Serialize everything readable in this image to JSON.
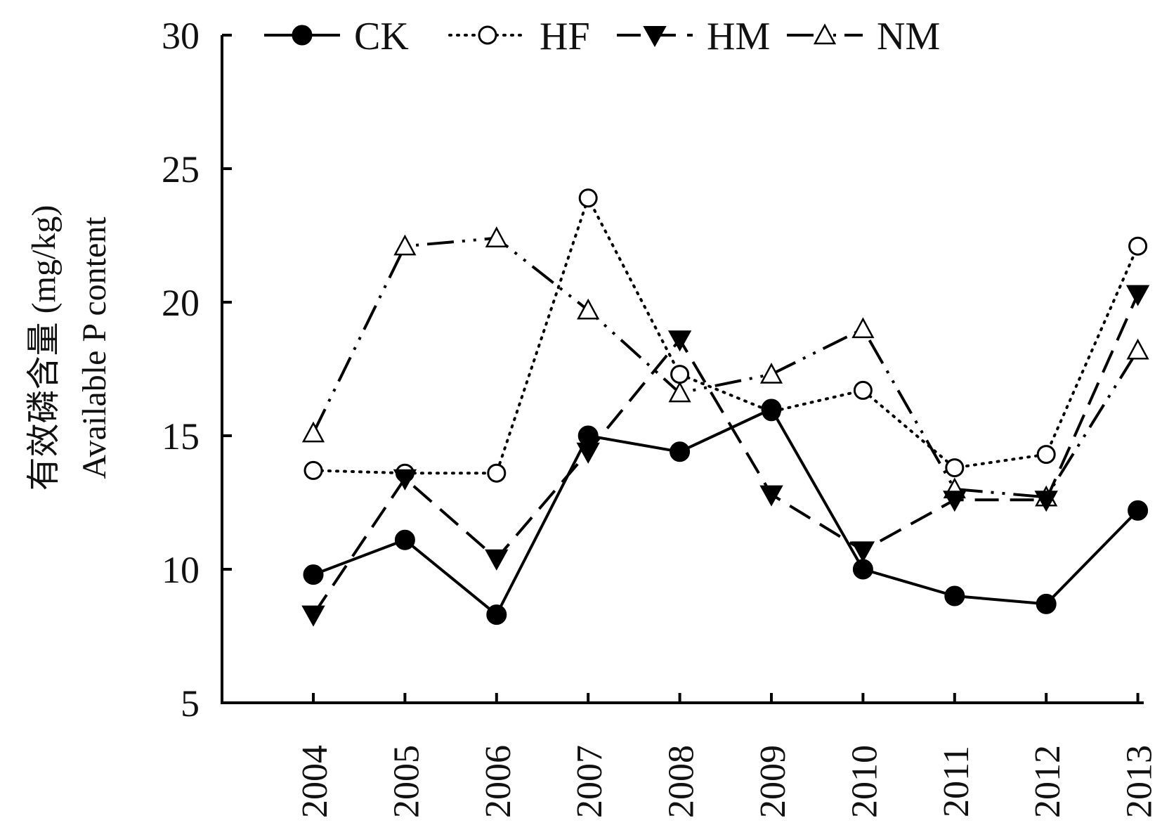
{
  "chart_data": {
    "type": "line",
    "title": "",
    "xlabel": "",
    "ylabel_line1": "有效磷含量 (mg/kg)",
    "ylabel_line2": "Available P content",
    "ylim": [
      5,
      30
    ],
    "yticks": [
      5,
      10,
      15,
      20,
      25,
      30
    ],
    "x": [
      "2004",
      "2005",
      "2006",
      "2007",
      "2008",
      "2009",
      "2010",
      "2011",
      "2012",
      "2013"
    ],
    "legend_position": "top",
    "grid": false,
    "series": [
      {
        "name": "CK",
        "marker": "filled-circle",
        "line": "solid",
        "values": [
          9.8,
          11.1,
          8.3,
          15.0,
          14.4,
          16.0,
          10.0,
          9.0,
          8.7,
          12.2
        ]
      },
      {
        "name": "HF",
        "marker": "open-circle",
        "line": "dotted",
        "values": [
          13.7,
          13.6,
          13.6,
          23.9,
          17.3,
          15.9,
          16.7,
          13.8,
          14.3,
          22.1
        ]
      },
      {
        "name": "HM",
        "marker": "filled-triangle-down",
        "line": "dashed",
        "values": [
          8.3,
          13.4,
          10.4,
          14.4,
          18.6,
          12.8,
          10.7,
          12.6,
          12.6,
          20.3
        ]
      },
      {
        "name": "NM",
        "marker": "open-triangle-up",
        "line": "dash-dot-dot",
        "values": [
          15.1,
          22.1,
          22.4,
          19.7,
          16.6,
          17.3,
          19.0,
          13.0,
          12.7,
          18.2
        ]
      }
    ]
  }
}
